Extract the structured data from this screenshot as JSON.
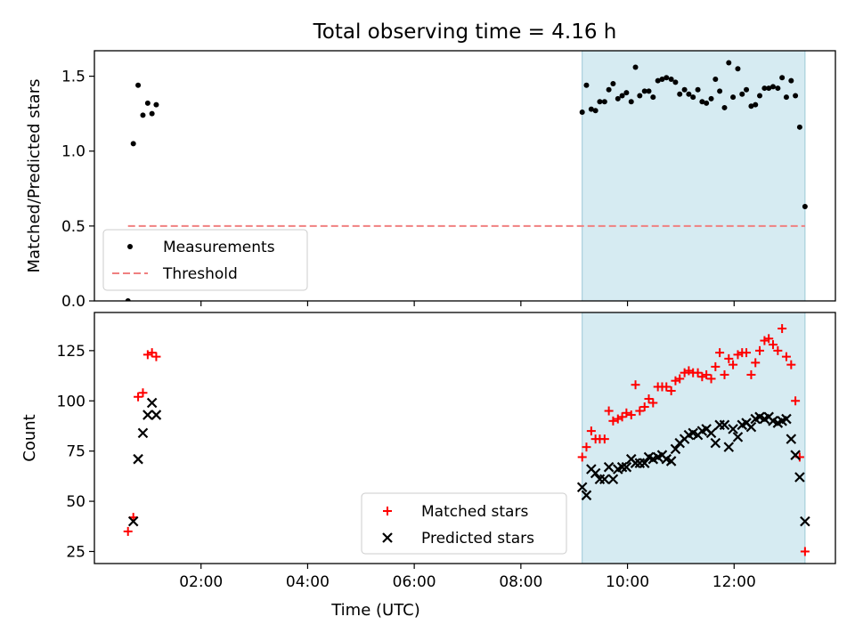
{
  "title": "Total observing time = 4.16 h",
  "chart_data": [
    {
      "type": "scatter",
      "ylabel": "Matched/Predicted stars",
      "xlabel": "",
      "xlim_hours": [
        0.0,
        13.9
      ],
      "ylim": [
        0,
        1.67
      ],
      "yticks": [
        0.0,
        0.5,
        1.0,
        1.5
      ],
      "ytick_labels": [
        "0.0",
        "0.5",
        "1.0",
        "1.5"
      ],
      "xticks": [
        2,
        4,
        6,
        8,
        10,
        12
      ],
      "xtick_labels": [
        "",
        "",
        "",
        "",
        "",
        ""
      ],
      "highlight_span_hours": [
        9.15,
        13.33
      ],
      "legend": {
        "placement": "lower-left",
        "entries": [
          "Measurements",
          "Threshold"
        ]
      },
      "series": [
        {
          "name": "Measurements",
          "color": "#000000",
          "points": [
            [
              0.63,
              0.0
            ],
            [
              0.73,
              1.05
            ],
            [
              0.82,
              1.44
            ],
            [
              0.91,
              1.24
            ],
            [
              1.0,
              1.32
            ],
            [
              1.08,
              1.25
            ],
            [
              1.16,
              1.31
            ],
            [
              9.15,
              1.26
            ],
            [
              9.23,
              1.44
            ],
            [
              9.32,
              1.28
            ],
            [
              9.4,
              1.27
            ],
            [
              9.48,
              1.33
            ],
            [
              9.57,
              1.33
            ],
            [
              9.65,
              1.41
            ],
            [
              9.73,
              1.45
            ],
            [
              9.82,
              1.35
            ],
            [
              9.9,
              1.37
            ],
            [
              9.98,
              1.39
            ],
            [
              10.07,
              1.33
            ],
            [
              10.15,
              1.56
            ],
            [
              10.23,
              1.37
            ],
            [
              10.32,
              1.4
            ],
            [
              10.4,
              1.4
            ],
            [
              10.48,
              1.36
            ],
            [
              10.57,
              1.47
            ],
            [
              10.65,
              1.48
            ],
            [
              10.73,
              1.49
            ],
            [
              10.82,
              1.48
            ],
            [
              10.9,
              1.46
            ],
            [
              10.98,
              1.38
            ],
            [
              11.07,
              1.41
            ],
            [
              11.15,
              1.38
            ],
            [
              11.23,
              1.36
            ],
            [
              11.32,
              1.41
            ],
            [
              11.4,
              1.33
            ],
            [
              11.48,
              1.32
            ],
            [
              11.57,
              1.35
            ],
            [
              11.65,
              1.48
            ],
            [
              11.73,
              1.4
            ],
            [
              11.82,
              1.29
            ],
            [
              11.9,
              1.59
            ],
            [
              11.98,
              1.36
            ],
            [
              12.07,
              1.55
            ],
            [
              12.15,
              1.38
            ],
            [
              12.23,
              1.41
            ],
            [
              12.32,
              1.3
            ],
            [
              12.4,
              1.31
            ],
            [
              12.48,
              1.37
            ],
            [
              12.57,
              1.42
            ],
            [
              12.65,
              1.42
            ],
            [
              12.73,
              1.43
            ],
            [
              12.82,
              1.42
            ],
            [
              12.9,
              1.49
            ],
            [
              12.98,
              1.36
            ],
            [
              13.07,
              1.47
            ],
            [
              13.15,
              1.37
            ],
            [
              13.23,
              1.16
            ],
            [
              13.33,
              0.63
            ]
          ]
        },
        {
          "name": "Threshold",
          "color": "#f08080",
          "style": "dashed",
          "line": [
            [
              0.63,
              0.5
            ],
            [
              13.33,
              0.5
            ]
          ]
        }
      ]
    },
    {
      "type": "scatter",
      "ylabel": "Count",
      "xlabel": "Time (UTC)",
      "xlim_hours": [
        0.0,
        13.9
      ],
      "ylim": [
        19,
        144
      ],
      "yticks": [
        25,
        50,
        75,
        100,
        125
      ],
      "ytick_labels": [
        "25",
        "50",
        "75",
        "100",
        "125"
      ],
      "xticks": [
        2,
        4,
        6,
        8,
        10,
        12
      ],
      "xtick_labels": [
        "02:00",
        "04:00",
        "06:00",
        "08:00",
        "10:00",
        "12:00"
      ],
      "highlight_span_hours": [
        9.15,
        13.33
      ],
      "legend": {
        "placement": "lower-center",
        "entries": [
          "Matched stars",
          "Predicted stars"
        ]
      },
      "series": [
        {
          "name": "Matched stars",
          "color": "#ff0000",
          "marker": "plus",
          "points": [
            [
              0.63,
              35
            ],
            [
              0.73,
              42
            ],
            [
              0.82,
              102
            ],
            [
              0.91,
              104
            ],
            [
              1.0,
              123
            ],
            [
              1.08,
              124
            ],
            [
              1.16,
              122
            ],
            [
              9.15,
              72
            ],
            [
              9.23,
              77
            ],
            [
              9.32,
              85
            ],
            [
              9.4,
              81
            ],
            [
              9.48,
              81
            ],
            [
              9.57,
              81
            ],
            [
              9.65,
              95
            ],
            [
              9.73,
              90
            ],
            [
              9.82,
              91
            ],
            [
              9.9,
              92
            ],
            [
              9.98,
              94
            ],
            [
              10.07,
              93
            ],
            [
              10.15,
              108
            ],
            [
              10.23,
              95
            ],
            [
              10.32,
              97
            ],
            [
              10.4,
              101
            ],
            [
              10.48,
              99
            ],
            [
              10.57,
              107
            ],
            [
              10.65,
              107
            ],
            [
              10.73,
              107
            ],
            [
              10.82,
              105
            ],
            [
              10.9,
              110
            ],
            [
              10.98,
              111
            ],
            [
              11.07,
              114
            ],
            [
              11.15,
              115
            ],
            [
              11.23,
              114
            ],
            [
              11.32,
              114
            ],
            [
              11.4,
              112
            ],
            [
              11.48,
              113
            ],
            [
              11.57,
              111
            ],
            [
              11.65,
              117
            ],
            [
              11.73,
              124
            ],
            [
              11.82,
              113
            ],
            [
              11.9,
              121
            ],
            [
              11.98,
              118
            ],
            [
              12.07,
              123
            ],
            [
              12.15,
              124
            ],
            [
              12.23,
              124
            ],
            [
              12.32,
              113
            ],
            [
              12.4,
              119
            ],
            [
              12.48,
              125
            ],
            [
              12.57,
              130
            ],
            [
              12.65,
              131
            ],
            [
              12.73,
              128
            ],
            [
              12.82,
              125
            ],
            [
              12.9,
              136
            ],
            [
              12.98,
              122
            ],
            [
              13.07,
              118
            ],
            [
              13.15,
              100
            ],
            [
              13.23,
              72
            ],
            [
              13.33,
              25
            ]
          ]
        },
        {
          "name": "Predicted stars",
          "color": "#000000",
          "marker": "x",
          "points": [
            [
              0.73,
              40
            ],
            [
              0.82,
              71
            ],
            [
              0.91,
              84
            ],
            [
              1.0,
              93
            ],
            [
              1.08,
              99
            ],
            [
              1.16,
              93
            ],
            [
              9.15,
              57
            ],
            [
              9.23,
              53
            ],
            [
              9.32,
              66
            ],
            [
              9.4,
              64
            ],
            [
              9.48,
              61
            ],
            [
              9.57,
              61
            ],
            [
              9.65,
              67
            ],
            [
              9.73,
              61
            ],
            [
              9.82,
              66
            ],
            [
              9.9,
              67
            ],
            [
              9.98,
              67
            ],
            [
              10.07,
              71
            ],
            [
              10.15,
              69
            ],
            [
              10.23,
              69
            ],
            [
              10.32,
              69
            ],
            [
              10.4,
              72
            ],
            [
              10.48,
              71
            ],
            [
              10.57,
              72
            ],
            [
              10.65,
              73
            ],
            [
              10.73,
              71
            ],
            [
              10.82,
              70
            ],
            [
              10.9,
              76
            ],
            [
              10.98,
              79
            ],
            [
              11.07,
              81
            ],
            [
              11.15,
              83
            ],
            [
              11.23,
              84
            ],
            [
              11.32,
              83
            ],
            [
              11.4,
              85
            ],
            [
              11.48,
              86
            ],
            [
              11.57,
              84
            ],
            [
              11.65,
              79
            ],
            [
              11.73,
              88
            ],
            [
              11.82,
              88
            ],
            [
              11.9,
              77
            ],
            [
              11.98,
              86
            ],
            [
              12.07,
              82
            ],
            [
              12.15,
              88
            ],
            [
              12.23,
              89
            ],
            [
              12.32,
              87
            ],
            [
              12.4,
              91
            ],
            [
              12.48,
              92
            ],
            [
              12.57,
              91
            ],
            [
              12.65,
              92
            ],
            [
              12.73,
              90
            ],
            [
              12.82,
              89
            ],
            [
              12.9,
              90
            ],
            [
              12.98,
              91
            ],
            [
              13.07,
              81
            ],
            [
              13.15,
              73
            ],
            [
              13.23,
              62
            ],
            [
              13.33,
              40
            ]
          ]
        }
      ]
    }
  ]
}
